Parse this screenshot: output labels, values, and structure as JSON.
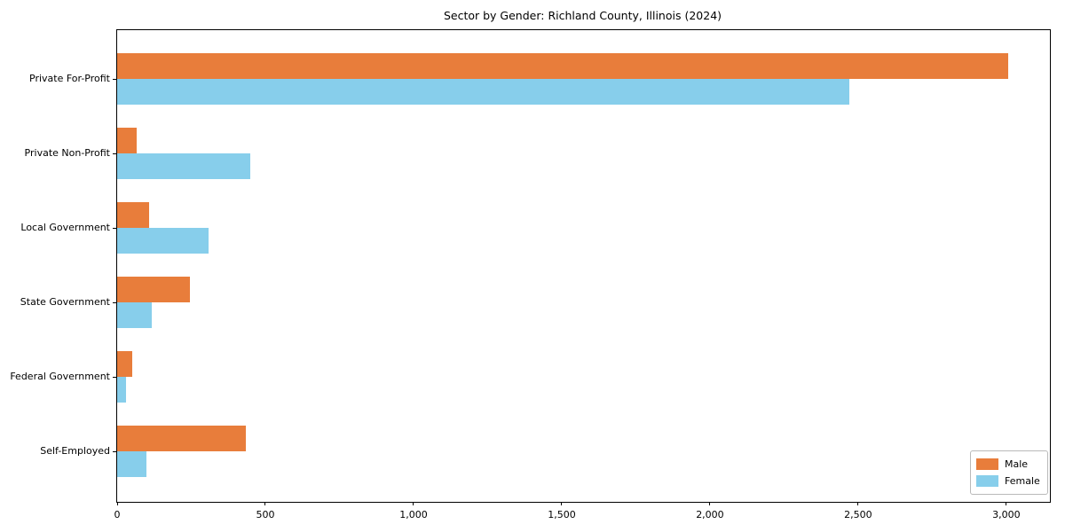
{
  "figure": {
    "title": "Sector by Gender: Richland County, Illinois (2024)"
  },
  "chart_data": {
    "type": "bar",
    "orientation": "horizontal",
    "title": "Sector by Gender: Richland County, Illinois (2024)",
    "categories": [
      "Private For-Profit",
      "Private Non-Profit",
      "Local Government",
      "State Government",
      "Federal Government",
      "Self-Employed"
    ],
    "series": [
      {
        "name": "Male",
        "color": "#e87d3b",
        "values": [
          3005,
          66,
          108,
          245,
          50,
          433
        ]
      },
      {
        "name": "Female",
        "color": "#87ceeb",
        "values": [
          2470,
          450,
          308,
          117,
          29,
          99
        ]
      }
    ],
    "xlabel": "",
    "ylabel": "",
    "xlim": [
      0,
      3147
    ],
    "xticks": [
      0,
      500,
      1000,
      1500,
      2000,
      2500,
      3000
    ],
    "xtick_labels": [
      "0",
      "500",
      "1,000",
      "1,500",
      "2,000",
      "2,500",
      "3,000"
    ],
    "legend_position": "lower right",
    "grid": false,
    "background_color": "#ffffff",
    "spine_color": "#000000"
  }
}
